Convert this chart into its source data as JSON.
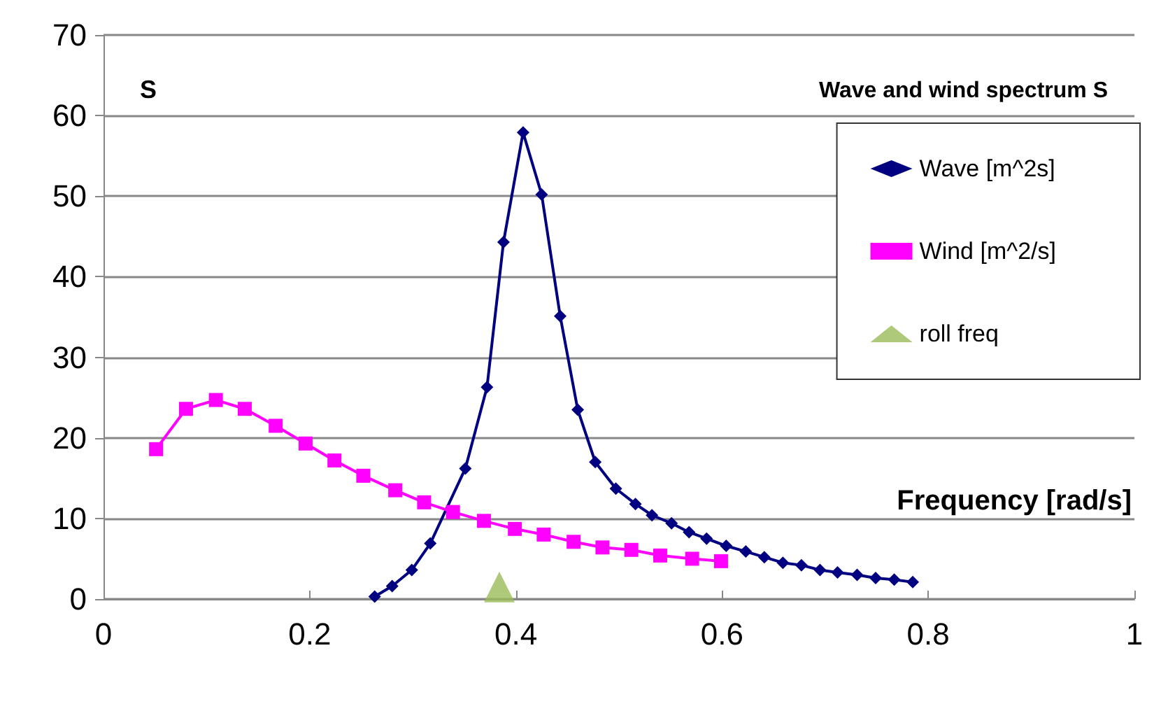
{
  "chart_data": {
    "type": "line",
    "title": "Wave and wind spectrum S",
    "ylabel": "S",
    "xlabel": "Frequency [rad/s]",
    "xlim": [
      0,
      1
    ],
    "xticks": [
      0,
      0.2,
      0.4,
      0.6,
      0.8,
      1
    ],
    "ylim": [
      0,
      70
    ],
    "yticks": [
      0,
      10,
      20,
      30,
      40,
      50,
      60,
      70
    ],
    "grid": "y",
    "legend": "top right",
    "series": [
      {
        "name": "Wave [m^2s]",
        "color": "#000080",
        "marker": "diamond",
        "x": [
          0.263,
          0.28,
          0.299,
          0.317,
          0.333,
          0.351,
          0.372,
          0.388,
          0.407,
          0.425,
          0.443,
          0.46,
          0.477,
          0.497,
          0.516,
          0.532,
          0.551,
          0.568,
          0.585,
          0.604,
          0.623,
          0.641,
          0.659,
          0.677,
          0.695,
          0.712,
          0.731,
          0.749,
          0.767,
          0.785
        ],
        "values": [
          0.3,
          1.6,
          3.6,
          6.9,
          null,
          16.2,
          26.3,
          44.3,
          57.9,
          50.2,
          35.1,
          23.5,
          17.0,
          13.7,
          11.8,
          10.4,
          9.4,
          8.3,
          7.5,
          6.6,
          5.9,
          5.2,
          4.5,
          4.2,
          3.6,
          3.3,
          3.0,
          2.6,
          2.4,
          2.1
        ]
      },
      {
        "name": "Wind [m^2/s]",
        "color": "#ff00ff",
        "marker": "square",
        "x": [
          0.051,
          0.08,
          0.109,
          0.137,
          0.167,
          0.196,
          0.224,
          0.252,
          0.283,
          0.311,
          0.339,
          0.369,
          0.399,
          0.427,
          0.456,
          0.484,
          0.512,
          0.54,
          0.571,
          0.599
        ],
        "values": [
          18.6,
          23.6,
          24.7,
          23.6,
          21.5,
          19.3,
          17.2,
          15.3,
          13.5,
          12.0,
          10.8,
          9.7,
          8.7,
          8.0,
          7.1,
          6.4,
          6.1,
          5.4,
          5.0,
          4.7
        ]
      },
      {
        "name": "roll freq",
        "type": "scatter",
        "color": "#9bbb59",
        "marker": "triangle",
        "x": [
          0.384
        ],
        "values": [
          1.5
        ]
      }
    ]
  }
}
